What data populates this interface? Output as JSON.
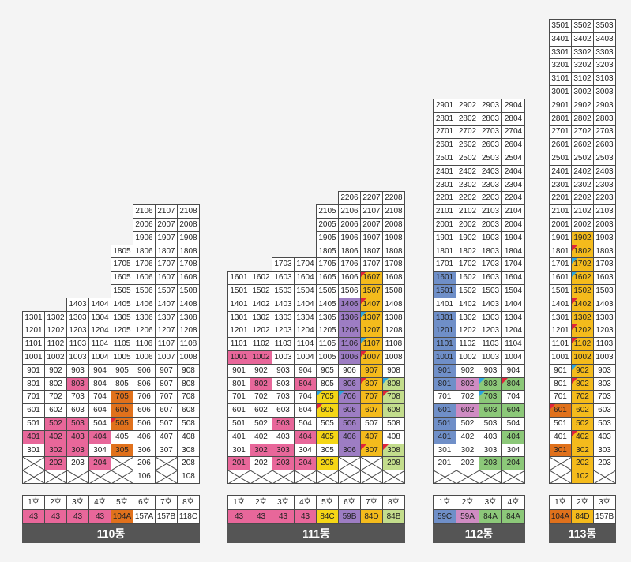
{
  "colors": {
    "43": "#e8679a",
    "104A": "#e0711c",
    "157A": "#ffffff",
    "157B": "#ffffff",
    "118C": "#ffffff",
    "84C": "#f5d616",
    "59B": "#9d7dc3",
    "84D": "#f4bb1c",
    "84B": "#c3dd8c",
    "59C": "#6f8fc8",
    "59A": "#cf8cc3",
    "84A": "#8cc879"
  },
  "flag_colors": {
    "red": "#e0253a",
    "blue": "#2ba6e0"
  },
  "buildings": [
    {
      "name": "110동",
      "units": [
        {
          "label": "1호",
          "type": "43"
        },
        {
          "label": "2호",
          "type": "43"
        },
        {
          "label": "3호",
          "type": "43"
        },
        {
          "label": "4호",
          "type": "43"
        },
        {
          "label": "5호",
          "type": "104A"
        },
        {
          "label": "6호",
          "type": "157A"
        },
        {
          "label": "7호",
          "type": "157B"
        },
        {
          "label": "8호",
          "type": "118C"
        }
      ],
      "columns": [
        {
          "top": 13,
          "blanks": [
            1,
            2
          ],
          "colored": {
            "302": "43",
            "401": "43",
            "502": "43",
            "602": "43",
            "802": "43",
            "102": "43"
          }
        },
        {
          "top": 13,
          "blanks": [
            1
          ],
          "colored": {
            "202": "43",
            "302": "43",
            "402": "43",
            "502": "43"
          }
        },
        {
          "top": 14,
          "blanks": [
            1
          ],
          "colored": {
            "303": "43",
            "403": "43",
            "503": "43",
            "803": "43"
          }
        },
        {
          "top": 14,
          "blanks": [
            1
          ],
          "colored": {
            "204": "43",
            "404": "43"
          }
        },
        {
          "top": 18,
          "blanks": [
            1,
            2
          ],
          "colored": {
            "305": "104A",
            "505": "104A",
            "605": "104A",
            "705": "104A"
          },
          "flags": {
            "505": "red"
          }
        },
        {
          "top": 21,
          "blanks": [],
          "colored": {}
        },
        {
          "top": 21,
          "blanks": [
            1,
            2
          ],
          "colored": {}
        },
        {
          "top": 21,
          "blanks": [],
          "colored": {}
        }
      ]
    },
    {
      "name": "111동",
      "units": [
        {
          "label": "1호",
          "type": "43"
        },
        {
          "label": "2호",
          "type": "43"
        },
        {
          "label": "3호",
          "type": "43"
        },
        {
          "label": "4호",
          "type": "43"
        },
        {
          "label": "5호",
          "type": "84C"
        },
        {
          "label": "6호",
          "type": "59B"
        },
        {
          "label": "7호",
          "type": "84D"
        },
        {
          "label": "8호",
          "type": "84B"
        }
      ],
      "columns": [
        {
          "top": 16,
          "blanks": [
            1
          ],
          "colored": {
            "201": "43",
            "1001": "43"
          }
        },
        {
          "top": 16,
          "blanks": [
            1
          ],
          "colored": {
            "302": "43",
            "802": "43",
            "1002": "43"
          }
        },
        {
          "top": 17,
          "blanks": [
            1
          ],
          "colored": {
            "203": "43",
            "303": "43",
            "503": "43"
          }
        },
        {
          "top": 17,
          "blanks": [
            1
          ],
          "colored": {
            "204": "43",
            "404": "43",
            "804": "43"
          }
        },
        {
          "top": 21,
          "blanks": [
            1
          ],
          "colored": {
            "205": "84C",
            "405": "84C",
            "605": "84C",
            "705": "84C"
          },
          "flags": {
            "605": "red",
            "705": "blue"
          }
        },
        {
          "top": 22,
          "blanks": [
            1,
            2
          ],
          "colored": {
            "306": "59B",
            "406": "59B",
            "506": "59B",
            "606": "59B",
            "706": "59B",
            "806": "59B",
            "1006": "59B",
            "1106": "59B",
            "1206": "59B",
            "1306": "59B",
            "1406": "59B"
          },
          "flags": {
            "706": "blue"
          }
        },
        {
          "top": 22,
          "blanks": [
            1,
            2
          ],
          "colored": {
            "307": "84D",
            "407": "84D",
            "607": "84D",
            "707": "84D",
            "807": "84D",
            "907": "84D",
            "1007": "84D",
            "1107": "84D",
            "1207": "84D",
            "1307": "84D",
            "1407": "84D",
            "1507": "84D",
            "1607": "84D"
          },
          "flags": {
            "307": "red",
            "807": "red",
            "1007": "red",
            "1107": "blue",
            "1307": "blue",
            "1407": "red",
            "1607": "red"
          }
        },
        {
          "top": 22,
          "blanks": [
            1
          ],
          "colored": {
            "208": "84B",
            "308": "84B",
            "608": "84B",
            "708": "84B",
            "808": "84B"
          },
          "flags": {
            "308": "red",
            "708": "red",
            "808": "blue"
          }
        }
      ]
    },
    {
      "name": "112동",
      "units": [
        {
          "label": "1호",
          "type": "59C"
        },
        {
          "label": "2호",
          "type": "59A"
        },
        {
          "label": "3호",
          "type": "84A"
        },
        {
          "label": "4호",
          "type": "84A"
        }
      ],
      "columns": [
        {
          "top": 29,
          "blanks": [
            1
          ],
          "colored": {
            "401": "59C",
            "501": "59C",
            "601": "59C",
            "801": "59C",
            "901": "59C",
            "1001": "59C",
            "1101": "59C",
            "1201": "59C",
            "1301": "59C",
            "1501": "59C",
            "1601": "59C"
          }
        },
        {
          "top": 29,
          "blanks": [
            1
          ],
          "colored": {
            "602": "59A",
            "802": "59A"
          }
        },
        {
          "top": 29,
          "blanks": [
            1
          ],
          "colored": {
            "203": "84A",
            "603": "84A",
            "703": "84A",
            "803": "84A"
          },
          "flags": {
            "703": "blue",
            "803": "blue"
          }
        },
        {
          "top": 29,
          "blanks": [
            1
          ],
          "colored": {
            "204": "84A",
            "404": "84A",
            "604": "84A",
            "804": "84A"
          },
          "flags": {
            "804": "red"
          }
        }
      ]
    },
    {
      "name": "113동",
      "units": [
        {
          "label": "1호",
          "type": "104A"
        },
        {
          "label": "2호",
          "type": "84D"
        },
        {
          "label": "3호",
          "type": "157B"
        }
      ],
      "columns": [
        {
          "top": 35,
          "blanks": [
            1,
            2
          ],
          "colored": {
            "301": "104A",
            "601": "104A"
          },
          "flags": {
            "601": "red"
          }
        },
        {
          "top": 35,
          "blanks": [],
          "colored": {
            "102": "84D",
            "202": "84D",
            "302": "84D",
            "402": "84D",
            "502": "84D",
            "602": "84D",
            "702": "84D",
            "802": "84D",
            "902": "84D",
            "1002": "84D",
            "1102": "84D",
            "1202": "84D",
            "1302": "84D",
            "1402": "84D",
            "1502": "84D",
            "1602": "84D",
            "1702": "84D",
            "1802": "84D",
            "1902": "84D"
          },
          "flags": {
            "402": "red",
            "802": "red",
            "902": "blue",
            "1102": "red",
            "1202": "red",
            "1402": "red",
            "1602": "blue",
            "1702": "blue",
            "1802": "red"
          }
        },
        {
          "top": 35,
          "blanks": [
            1
          ],
          "colored": {}
        }
      ]
    }
  ]
}
